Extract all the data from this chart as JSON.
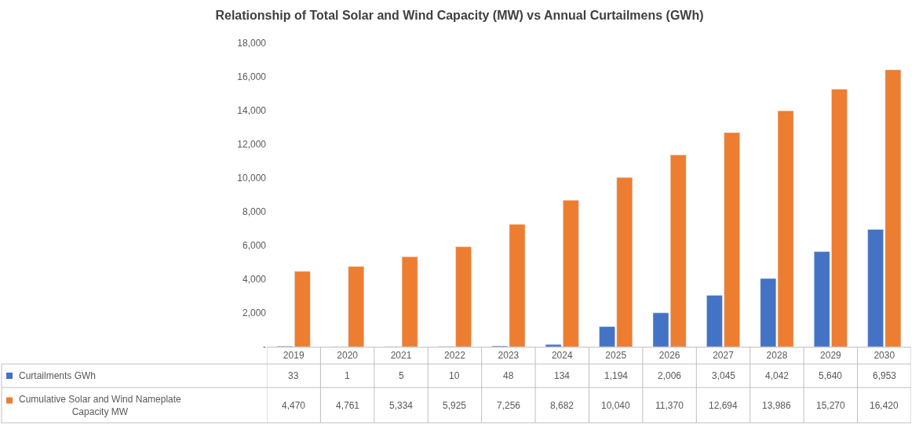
{
  "chart_data": {
    "type": "bar",
    "title": "Relationship of Total Solar and Wind Capacity (MW) vs Annual Curtailmens (GWh)",
    "categories": [
      "2019",
      "2020",
      "2021",
      "2022",
      "2023",
      "2024",
      "2025",
      "2026",
      "2027",
      "2028",
      "2029",
      "2030"
    ],
    "series": [
      {
        "name": "Curtailments GWh",
        "color": "#4472c4",
        "values": [
          33,
          1,
          5,
          10,
          48,
          134,
          1194,
          2006,
          3045,
          4042,
          5640,
          6953
        ],
        "value_labels": [
          "33",
          "1",
          "5",
          "10",
          "48",
          "134",
          "1,194",
          "2,006",
          "3,045",
          "4,042",
          "5,640",
          "6,953"
        ]
      },
      {
        "name": "Cumulative Solar and Wind Nameplate Capacity MW",
        "color": "#ed7d31",
        "values": [
          4470,
          4761,
          5334,
          5925,
          7256,
          8682,
          10040,
          11370,
          12694,
          13986,
          15270,
          16420
        ],
        "value_labels": [
          "4,470",
          "4,761",
          "5,334",
          "5,925",
          "7,256",
          "8,682",
          "10,040",
          "11,370",
          "12,694",
          "13,986",
          "15,270",
          "16,420"
        ]
      }
    ],
    "ylim": [
      0,
      18000
    ],
    "yticks": [
      {
        "value": 0,
        "label": "-"
      },
      {
        "value": 2000,
        "label": "2,000"
      },
      {
        "value": 4000,
        "label": "4,000"
      },
      {
        "value": 6000,
        "label": "6,000"
      },
      {
        "value": 8000,
        "label": "8,000"
      },
      {
        "value": 10000,
        "label": "10,000"
      },
      {
        "value": 12000,
        "label": "12,000"
      },
      {
        "value": 14000,
        "label": "14,000"
      },
      {
        "value": 16000,
        "label": "16,000"
      },
      {
        "value": 18000,
        "label": "18,000"
      }
    ],
    "grid": false,
    "legend": "bottom"
  }
}
